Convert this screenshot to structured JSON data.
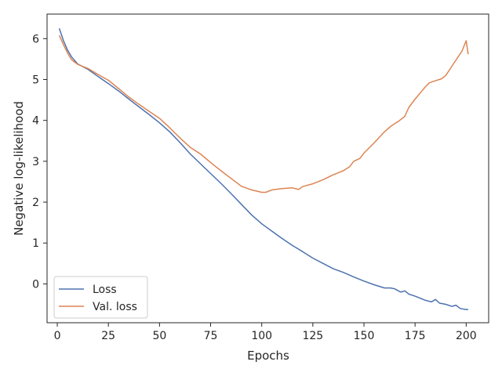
{
  "chart_data": {
    "type": "line",
    "title": "",
    "xlabel": "Epochs",
    "ylabel": "Negative log-likelihood",
    "xlim": [
      -5,
      211
    ],
    "ylim": [
      -0.95,
      6.6
    ],
    "xticks": [
      0,
      25,
      50,
      75,
      100,
      125,
      150,
      175,
      200
    ],
    "yticks": [
      0,
      1,
      2,
      3,
      4,
      5,
      6
    ],
    "grid": false,
    "legend_position": "bottom-left",
    "series": [
      {
        "name": "Loss",
        "color": "#4c72b0",
        "x": [
          1,
          3,
          5,
          7,
          10,
          15,
          20,
          25,
          30,
          35,
          40,
          45,
          50,
          55,
          60,
          65,
          70,
          75,
          80,
          85,
          90,
          95,
          100,
          105,
          110,
          115,
          120,
          125,
          130,
          135,
          140,
          145,
          150,
          155,
          160,
          163,
          165,
          168,
          170,
          172,
          175,
          180,
          183,
          185,
          187,
          190,
          193,
          195,
          197,
          199,
          201
        ],
        "values": [
          6.25,
          5.95,
          5.72,
          5.55,
          5.38,
          5.25,
          5.07,
          4.9,
          4.72,
          4.52,
          4.33,
          4.14,
          3.94,
          3.72,
          3.46,
          3.18,
          2.94,
          2.7,
          2.46,
          2.21,
          1.95,
          1.69,
          1.47,
          1.29,
          1.11,
          0.94,
          0.79,
          0.63,
          0.5,
          0.37,
          0.28,
          0.17,
          0.07,
          -0.02,
          -0.1,
          -0.1,
          -0.12,
          -0.2,
          -0.17,
          -0.25,
          -0.3,
          -0.4,
          -0.44,
          -0.38,
          -0.47,
          -0.5,
          -0.55,
          -0.52,
          -0.6,
          -0.62,
          -0.63
        ]
      },
      {
        "name": "Val. loss",
        "color": "#dd8452",
        "x": [
          1,
          3,
          5,
          7,
          10,
          15,
          20,
          25,
          30,
          35,
          40,
          45,
          50,
          55,
          60,
          65,
          70,
          75,
          80,
          85,
          90,
          95,
          100,
          102,
          105,
          110,
          115,
          118,
          120,
          125,
          130,
          135,
          140,
          143,
          145,
          148,
          150,
          155,
          160,
          163,
          165,
          167,
          170,
          172,
          175,
          178,
          180,
          182,
          185,
          188,
          190,
          192,
          194,
          196,
          198,
          200,
          201
        ],
        "values": [
          6.08,
          5.85,
          5.65,
          5.48,
          5.37,
          5.27,
          5.12,
          4.98,
          4.78,
          4.57,
          4.39,
          4.22,
          4.05,
          3.82,
          3.57,
          3.34,
          3.18,
          2.97,
          2.77,
          2.58,
          2.39,
          2.3,
          2.24,
          2.24,
          2.3,
          2.33,
          2.35,
          2.31,
          2.38,
          2.45,
          2.55,
          2.67,
          2.77,
          2.87,
          3.0,
          3.07,
          3.2,
          3.45,
          3.72,
          3.85,
          3.92,
          3.98,
          4.1,
          4.32,
          4.52,
          4.7,
          4.82,
          4.92,
          4.97,
          5.02,
          5.1,
          5.25,
          5.4,
          5.55,
          5.7,
          5.95,
          5.62
        ]
      }
    ]
  }
}
